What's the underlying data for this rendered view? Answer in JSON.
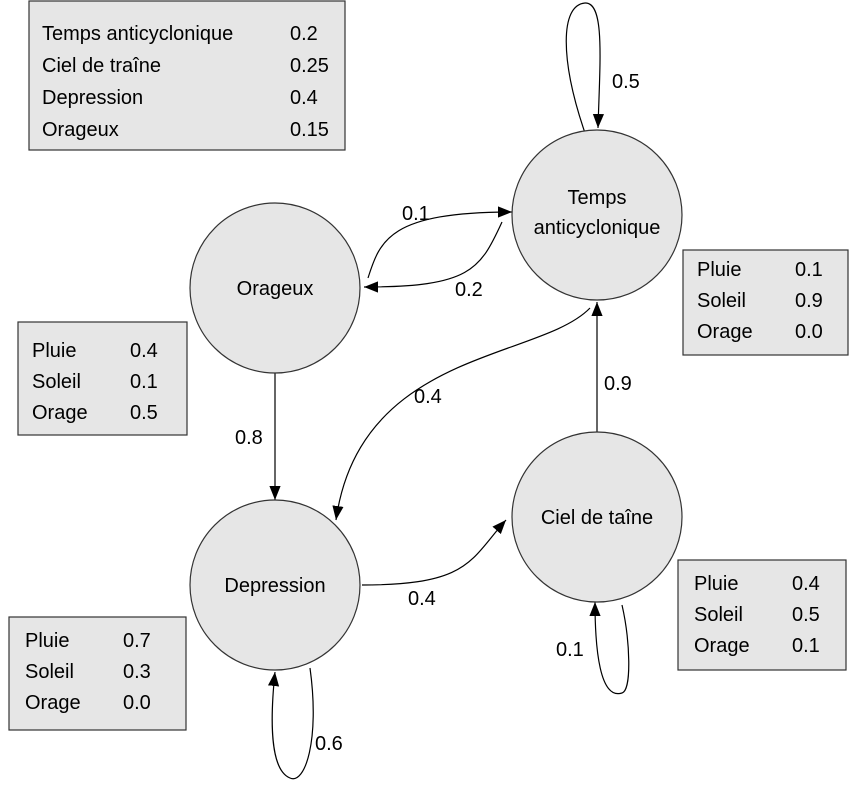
{
  "initial": {
    "rows": [
      [
        "Temps anticyclonique",
        "0.2"
      ],
      [
        "Ciel de traîne",
        "0.25"
      ],
      [
        "Depression",
        "0.4"
      ],
      [
        "Orageux",
        "0.15"
      ]
    ]
  },
  "nodes": [
    {
      "label": [
        "Temps",
        "anticyclonique"
      ],
      "emissions": [
        [
          "Pluie",
          "0.1"
        ],
        [
          "Soleil",
          "0.9"
        ],
        [
          "Orage",
          "0.0"
        ]
      ]
    },
    {
      "label": [
        "Orageux"
      ],
      "emissions": [
        [
          "Pluie",
          "0.4"
        ],
        [
          "Soleil",
          "0.1"
        ],
        [
          "Orage",
          "0.5"
        ]
      ]
    },
    {
      "label": [
        "Depression"
      ],
      "emissions": [
        [
          "Pluie",
          "0.7"
        ],
        [
          "Soleil",
          "0.3"
        ],
        [
          "Orage",
          "0.0"
        ]
      ]
    },
    {
      "label": [
        "Ciel de taîne"
      ],
      "emissions": [
        [
          "Pluie",
          "0.4"
        ],
        [
          "Soleil",
          "0.5"
        ],
        [
          "Orage",
          "0.1"
        ]
      ]
    }
  ],
  "edges": [
    {
      "label": "0.5"
    },
    {
      "label": "0.1"
    },
    {
      "label": "0.2"
    },
    {
      "label": "0.8"
    },
    {
      "label": "0.4"
    },
    {
      "label": "0.9"
    },
    {
      "label": "0.4"
    },
    {
      "label": "0.1"
    },
    {
      "label": "0.6"
    }
  ]
}
